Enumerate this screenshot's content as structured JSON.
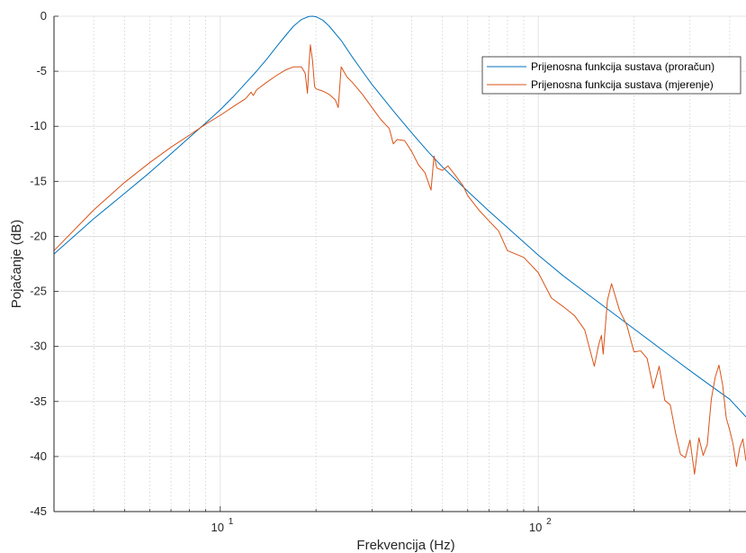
{
  "chart_data": {
    "type": "line",
    "xscale": "log",
    "xlim": [
      3.0,
      450
    ],
    "ylim": [
      -45,
      0
    ],
    "xlabel": "Frekvencija (Hz)",
    "ylabel": "Pojačanje (dB)",
    "x_ticks": [
      10,
      100
    ],
    "x_tick_labels": [
      {
        "base": "10",
        "exp": "1"
      },
      {
        "base": "10",
        "exp": "2"
      }
    ],
    "y_ticks": [
      0,
      -5,
      -10,
      -15,
      -20,
      -25,
      -30,
      -35,
      -40,
      -45
    ],
    "y_tick_labels": [
      "0",
      "-5",
      "-10",
      "-15",
      "-20",
      "-25",
      "-30",
      "-35",
      "-40",
      "-45"
    ],
    "grid": true,
    "legend_position": "top-right",
    "colors": {
      "calc": "#0072BD",
      "meas": "#D95319",
      "grid": "#dcdcdc",
      "axis": "#262626"
    },
    "series": [
      {
        "name": "Prijenosna funkcija sustava (proračun)",
        "color": "#0072BD",
        "x": [
          3.0,
          4,
          5,
          6,
          7,
          8,
          9,
          10,
          11,
          12,
          13,
          14,
          15,
          16,
          17,
          18,
          19,
          19.5,
          20,
          21,
          22,
          24,
          26,
          28,
          30,
          35,
          40,
          45,
          50,
          60,
          70,
          80,
          100,
          120,
          150,
          200,
          250,
          300,
          350,
          400,
          450
        ],
        "y": [
          -21.6,
          -18.4,
          -16.1,
          -14.2,
          -12.5,
          -11.0,
          -9.7,
          -8.5,
          -7.3,
          -6.1,
          -5.0,
          -3.9,
          -2.8,
          -1.8,
          -0.9,
          -0.3,
          -0.02,
          0.0,
          -0.05,
          -0.35,
          -0.9,
          -2.2,
          -3.7,
          -5.0,
          -6.2,
          -8.6,
          -10.6,
          -12.3,
          -13.7,
          -15.9,
          -17.7,
          -19.2,
          -21.7,
          -23.6,
          -25.7,
          -28.4,
          -30.5,
          -32.2,
          -33.6,
          -34.8,
          -36.4
        ]
      },
      {
        "name": "Prijenosna funkcija sustava (mjerenje)",
        "color": "#D95319",
        "x": [
          3.0,
          4,
          5,
          6,
          7,
          8,
          9,
          10,
          11,
          12,
          12.5,
          12.7,
          13,
          14,
          15,
          16,
          17,
          18,
          18.5,
          18.8,
          19,
          19.2,
          19.5,
          19.8,
          20,
          21,
          22,
          23,
          23.5,
          24,
          25,
          26,
          28,
          30,
          32,
          34,
          35,
          36,
          38,
          40,
          42,
          44,
          46,
          47,
          48,
          50,
          52,
          55,
          58,
          60,
          65,
          70,
          75,
          80,
          90,
          100,
          110,
          120,
          130,
          140,
          150,
          155,
          158,
          160,
          165,
          170,
          180,
          190,
          200,
          210,
          220,
          230,
          240,
          250,
          260,
          270,
          280,
          290,
          300,
          310,
          320,
          330,
          340,
          350,
          360,
          370,
          380,
          390,
          400,
          410,
          420,
          430,
          440,
          450
        ],
        "y": [
          -21.3,
          -17.6,
          -15.1,
          -13.3,
          -11.9,
          -10.8,
          -9.8,
          -9.0,
          -8.2,
          -7.5,
          -6.9,
          -7.2,
          -6.7,
          -6.0,
          -5.4,
          -4.9,
          -4.6,
          -4.6,
          -5.2,
          -7.0,
          -4.5,
          -2.6,
          -4.0,
          -6.4,
          -6.6,
          -6.8,
          -7.1,
          -7.6,
          -8.3,
          -4.6,
          -5.5,
          -6.0,
          -7.1,
          -8.3,
          -9.4,
          -10.2,
          -11.6,
          -11.2,
          -11.3,
          -12.3,
          -13.5,
          -14.2,
          -15.8,
          -12.7,
          -13.8,
          -14.0,
          -13.6,
          -14.5,
          -15.4,
          -16.3,
          -17.6,
          -18.6,
          -19.5,
          -21.3,
          -21.9,
          -23.3,
          -25.6,
          -26.4,
          -27.2,
          -28.5,
          -31.8,
          -29.8,
          -29.0,
          -30.7,
          -25.8,
          -24.3,
          -26.7,
          -28.1,
          -30.5,
          -30.4,
          -31.1,
          -33.8,
          -31.8,
          -34.9,
          -35.3,
          -37.8,
          -39.8,
          -40.1,
          -38.5,
          -41.6,
          -38.3,
          -39.9,
          -38.9,
          -34.8,
          -32.8,
          -31.7,
          -33.5,
          -36.5,
          -37.6,
          -38.9,
          -40.9,
          -39.2,
          -38.4,
          -40.4
        ]
      }
    ]
  }
}
